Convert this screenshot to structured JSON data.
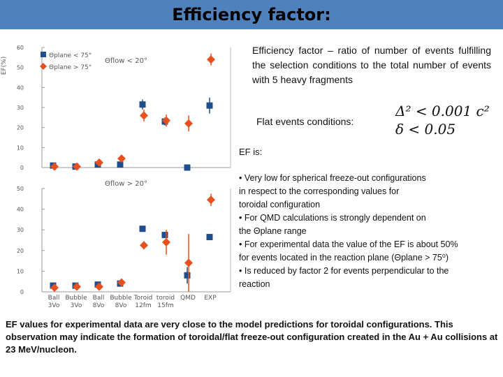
{
  "title": "Efficiency factor:",
  "definition": "Efficiency factor – ratio of number of events fulfilling the selection conditions to the total number of events with 5 heavy fragments",
  "flat_label": "Flat events conditions:",
  "formula_1": "Δ² < 0.001 c²",
  "formula_2": "δ < 0.05",
  "ef_is": "EF is:",
  "bullets": [
    "• Very low for spherical freeze-out configurations",
    "in respect to the corresponding values for",
    "toroidal configuration",
    "• For QMD calculations is strongly dependent on",
    "the Θplane range",
    "• For experimental data the value of the EF is about 50%",
    "for events located in the reaction plane (Θplane > 75⁰)",
    "• Is reduced by factor 2 for events perpendicular to the",
    "reaction"
  ],
  "conclusion": "EF values for experimental data are very close to the model predictions for toroidal configurations. This observation may indicate the formation of toroidal/flat freeze-out configuration created in the Au + Au collisions at 23 MeV/nucleon.",
  "colors": {
    "title_bar": "#4f81bd",
    "series_square": "#1f4e8c",
    "series_diamond": "#e8501e"
  },
  "chart_data": [
    {
      "type": "scatter",
      "ylabel": "EF(%)",
      "ylim": [
        0,
        60
      ],
      "yticks": [
        "0",
        "10",
        "20",
        "30",
        "40",
        "50",
        "60"
      ],
      "annotation": "Θflow < 20°",
      "legend": [
        "Θplane < 75°",
        "Θplane > 75°"
      ],
      "legend_placement": "top-left",
      "series": [
        {
          "name": "Θplane < 75°",
          "marker": "square",
          "values": [
            1,
            0.5,
            1.5,
            1.5,
            31.5,
            23,
            0,
            31
          ],
          "errors": [
            1,
            1,
            1,
            1,
            2.5,
            2,
            0,
            4
          ]
        },
        {
          "name": "Θplane > 75°",
          "marker": "diamond",
          "values": [
            0.5,
            0.5,
            2.5,
            4.5,
            26,
            23.5,
            22,
            54
          ],
          "errors": [
            0.8,
            0.8,
            1,
            1,
            3,
            3,
            4,
            3
          ]
        }
      ]
    },
    {
      "type": "scatter",
      "ylim": [
        0,
        50
      ],
      "yticks": [
        "0",
        "10",
        "20",
        "30",
        "40",
        "50"
      ],
      "annotation": "Θflow > 20°",
      "categories": [
        "Ball 3Vo",
        "Bubble 3Vo",
        "Ball 8Vo",
        "Bubble 8Vo",
        "Toroid 12fm",
        "toroid 15fm",
        "QMD",
        "EXP"
      ],
      "series": [
        {
          "name": "Θplane < 75°",
          "marker": "square",
          "values": [
            3,
            3,
            3.5,
            4,
            30.5,
            27.5,
            8,
            26.5
          ],
          "errors": [
            0.8,
            0.8,
            0.8,
            0.8,
            1.5,
            1.5,
            4,
            1.5
          ]
        },
        {
          "name": "Θplane > 75°",
          "marker": "diamond",
          "values": [
            2,
            2.5,
            2.5,
            4.5,
            22.5,
            24,
            14,
            44.5
          ],
          "errors": [
            1,
            0.8,
            0.8,
            1,
            2,
            6,
            14,
            3
          ]
        }
      ]
    }
  ]
}
